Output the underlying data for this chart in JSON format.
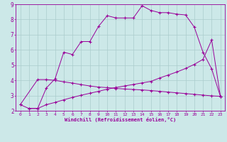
{
  "xlabel": "Windchill (Refroidissement éolien,°C)",
  "xlim": [
    -0.5,
    23.5
  ],
  "ylim": [
    2,
    9
  ],
  "xticks": [
    0,
    1,
    2,
    3,
    4,
    5,
    6,
    7,
    8,
    9,
    10,
    11,
    12,
    13,
    14,
    15,
    16,
    17,
    18,
    19,
    20,
    21,
    22,
    23
  ],
  "yticks": [
    2,
    3,
    4,
    5,
    6,
    7,
    8,
    9
  ],
  "bg_color": "#cce8e8",
  "line_color": "#990099",
  "grid_color": "#aacccc",
  "line1_x": [
    0,
    1,
    2,
    3,
    4,
    5,
    6,
    7,
    8,
    9,
    10,
    11,
    12,
    13,
    14,
    15,
    16,
    17,
    18,
    19,
    20,
    21,
    22,
    23
  ],
  "line1_y": [
    2.4,
    2.15,
    2.15,
    3.5,
    4.1,
    5.85,
    5.7,
    6.55,
    6.55,
    7.55,
    8.25,
    8.1,
    8.1,
    8.1,
    8.9,
    8.6,
    8.45,
    8.45,
    8.35,
    8.3,
    7.5,
    5.85,
    4.75,
    2.95
  ],
  "line2_x": [
    0,
    2,
    3,
    4,
    5,
    6,
    7,
    8,
    9,
    10,
    11,
    12,
    13,
    14,
    15,
    16,
    17,
    18,
    19,
    20,
    21,
    22,
    23
  ],
  "line2_y": [
    2.4,
    4.05,
    4.05,
    4.0,
    3.9,
    3.82,
    3.72,
    3.63,
    3.56,
    3.52,
    3.47,
    3.43,
    3.4,
    3.37,
    3.33,
    3.28,
    3.23,
    3.18,
    3.13,
    3.08,
    3.03,
    2.98,
    2.95
  ],
  "line3_x": [
    1,
    2,
    3,
    4,
    5,
    6,
    7,
    8,
    9,
    10,
    11,
    12,
    13,
    14,
    15,
    16,
    17,
    18,
    19,
    20,
    21,
    22,
    23
  ],
  "line3_y": [
    2.15,
    2.15,
    2.4,
    2.55,
    2.72,
    2.88,
    3.02,
    3.15,
    3.28,
    3.42,
    3.53,
    3.63,
    3.73,
    3.83,
    3.93,
    4.15,
    4.35,
    4.55,
    4.78,
    5.05,
    5.38,
    6.65,
    2.95
  ]
}
